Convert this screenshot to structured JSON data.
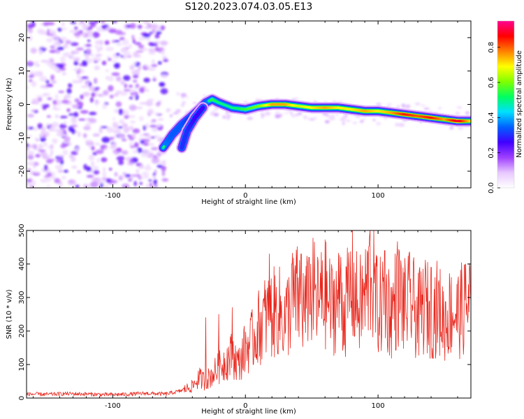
{
  "figure": {
    "title": "S120.2023.074.03.05.E13"
  },
  "chart_data": [
    {
      "type": "heatmap",
      "title": "",
      "xlabel": "Height of straight line (km)",
      "ylabel": "Frequency (Hz)",
      "xlim": [
        -165,
        170
      ],
      "ylim": [
        -25,
        25
      ],
      "xticks": [
        -100,
        0,
        100
      ],
      "yticks": [
        -20,
        -10,
        0,
        10,
        20
      ],
      "xtick_labels": [
        "-100",
        "0",
        "100"
      ],
      "ytick_labels": [
        "-20",
        "-10",
        "0",
        "10",
        "20"
      ],
      "colorbar": {
        "label": "Normalized spectral amplitude",
        "range": [
          0.0,
          0.95
        ],
        "ticks": [
          0.0,
          0.2,
          0.4,
          0.6,
          0.8
        ],
        "tick_labels": [
          "0.0",
          "0.2",
          "0.4",
          "0.6",
          "0.8"
        ],
        "colormap": [
          "#ffffff",
          "#e8c8ff",
          "#a040ff",
          "#4000ff",
          "#0060ff",
          "#00e0ff",
          "#00ff60",
          "#80ff00",
          "#ffff00",
          "#ff8000",
          "#ff0000",
          "#ff0090"
        ]
      },
      "noise_region": {
        "x": [
          -165,
          -60
        ],
        "freq": [
          -25,
          25
        ],
        "amplitude": [
          0.05,
          0.25
        ]
      },
      "ridge": [
        {
          "x": -62,
          "freq": -13,
          "amp": 0.5
        },
        {
          "x": -55,
          "freq": -9,
          "amp": 0.45
        },
        {
          "x": -48,
          "freq": -6,
          "amp": 0.45
        },
        {
          "x": -42,
          "freq": -4,
          "amp": 0.4
        },
        {
          "x": -35,
          "freq": -1.5,
          "amp": 0.4
        },
        {
          "x": -30,
          "freq": 0.5,
          "amp": 0.45
        },
        {
          "x": -25,
          "freq": 1.5,
          "amp": 0.55
        },
        {
          "x": -20,
          "freq": 0.5,
          "amp": 0.5
        },
        {
          "x": -10,
          "freq": -1,
          "amp": 0.5
        },
        {
          "x": 0,
          "freq": -1.5,
          "amp": 0.55
        },
        {
          "x": 10,
          "freq": -0.5,
          "amp": 0.6
        },
        {
          "x": 20,
          "freq": 0,
          "amp": 0.75
        },
        {
          "x": 30,
          "freq": 0,
          "amp": 0.75
        },
        {
          "x": 40,
          "freq": -0.5,
          "amp": 0.65
        },
        {
          "x": 50,
          "freq": -1,
          "amp": 0.7
        },
        {
          "x": 60,
          "freq": -1,
          "amp": 0.75
        },
        {
          "x": 70,
          "freq": -1,
          "amp": 0.7
        },
        {
          "x": 80,
          "freq": -1.5,
          "amp": 0.7
        },
        {
          "x": 90,
          "freq": -2,
          "amp": 0.75
        },
        {
          "x": 100,
          "freq": -2,
          "amp": 0.7
        },
        {
          "x": 110,
          "freq": -2.5,
          "amp": 0.75
        },
        {
          "x": 120,
          "freq": -3,
          "amp": 0.85
        },
        {
          "x": 130,
          "freq": -3.5,
          "amp": 0.8
        },
        {
          "x": 140,
          "freq": -4,
          "amp": 0.85
        },
        {
          "x": 150,
          "freq": -4.5,
          "amp": 0.75
        },
        {
          "x": 160,
          "freq": -5,
          "amp": 0.9
        },
        {
          "x": 170,
          "freq": -5,
          "amp": 0.7
        }
      ],
      "secondary_ridge": [
        {
          "x": -48,
          "freq": -13,
          "amp": 0.4
        },
        {
          "x": -44,
          "freq": -8,
          "amp": 0.4
        },
        {
          "x": -38,
          "freq": -4,
          "amp": 0.35
        },
        {
          "x": -32,
          "freq": -1,
          "amp": 0.35
        }
      ]
    },
    {
      "type": "line",
      "title": "",
      "xlabel": "Height of straight line (km)",
      "ylabel": "SNR (10 * v/v)",
      "xlim": [
        -165,
        170
      ],
      "ylim": [
        0,
        500
      ],
      "xticks": [
        -100,
        0,
        100
      ],
      "yticks": [
        0,
        100,
        200,
        300,
        400,
        500
      ],
      "xtick_labels": [
        "-100",
        "0",
        "100"
      ],
      "ytick_labels": [
        "0",
        "100",
        "200",
        "300",
        "400",
        "500"
      ],
      "color": "#e8281e",
      "series": [
        {
          "x": [
            -165,
            -150,
            -135,
            -120,
            -105,
            -90,
            -75,
            -60,
            -50,
            -40,
            -35,
            -30,
            -25,
            -20,
            -15,
            -10,
            -5,
            0,
            5,
            10,
            15,
            20,
            25,
            30,
            35,
            40,
            45,
            50,
            55,
            60,
            65,
            70,
            75,
            80,
            85,
            90,
            95,
            100,
            105,
            110,
            115,
            120,
            125,
            130,
            135,
            140,
            145,
            150,
            155,
            160,
            165,
            170
          ],
          "y": [
            12,
            11,
            13,
            12,
            10,
            11,
            14,
            12,
            20,
            35,
            60,
            50,
            70,
            90,
            110,
            130,
            100,
            150,
            170,
            210,
            240,
            250,
            260,
            230,
            290,
            300,
            260,
            320,
            280,
            310,
            270,
            300,
            260,
            340,
            270,
            300,
            380,
            260,
            300,
            250,
            320,
            270,
            290,
            240,
            280,
            250,
            270,
            230,
            260,
            250,
            270,
            290
          ],
          "peaks": [
            {
              "x": -30,
              "y": 240
            },
            {
              "x": -20,
              "y": 250
            },
            {
              "x": -10,
              "y": 270
            },
            {
              "x": 18,
              "y": 430
            },
            {
              "x": 35,
              "y": 400
            },
            {
              "x": 42,
              "y": 430
            },
            {
              "x": 48,
              "y": 420
            },
            {
              "x": 58,
              "y": 410
            },
            {
              "x": 72,
              "y": 420
            },
            {
              "x": 94,
              "y": 500
            },
            {
              "x": 105,
              "y": 440
            },
            {
              "x": 114,
              "y": 420
            },
            {
              "x": 140,
              "y": 390
            },
            {
              "x": 166,
              "y": 400
            }
          ]
        }
      ]
    }
  ]
}
